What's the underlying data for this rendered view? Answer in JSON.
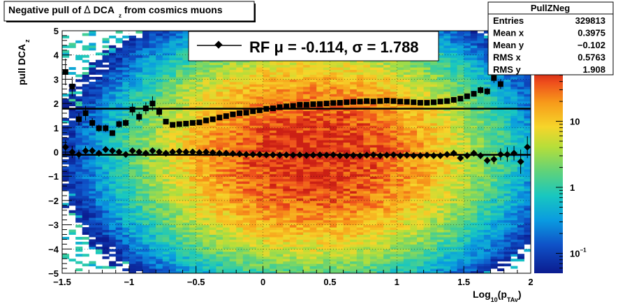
{
  "title_box": {
    "pre": "Negative pull of ",
    "delta": "Δ",
    "dca": " DCA",
    "sub": "z",
    "post": " from cosmics muons"
  },
  "stats": {
    "name": "PullZNeg",
    "rows": [
      {
        "label": "Entries",
        "value": "329813"
      },
      {
        "label": "Mean x",
        "value": "0.3975"
      },
      {
        "label": "Mean y",
        "value": "−0.102"
      },
      {
        "label": "RMS x",
        "value": "0.5763"
      },
      {
        "label": "RMS y",
        "value": "1.908"
      }
    ]
  },
  "legend": {
    "text": "RF μ = -0.114, σ =   1.788"
  },
  "axes": {
    "ylabel_main": "pull DCA",
    "ylabel_sub": "z",
    "xlabel_pre": "Log",
    "xlabel_sub1": "10",
    "xlabel_mid": "(p",
    "xlabel_sub2": "TAv",
    "xlabel_post": ")"
  },
  "colors": {
    "marker": "#000000",
    "fit_line": "#000000",
    "frame": "#000000"
  },
  "chart_data": {
    "type": "heatmap",
    "title": "Negative pull of Δ DCA_z from cosmics muons",
    "xlabel": "Log10(p_TAv)",
    "ylabel": "pull DCA_z",
    "xlim": [
      -1.5,
      2
    ],
    "ylim": [
      -5,
      5
    ],
    "x_ticks": [
      "−1.5",
      "−1",
      "−0.5",
      "0",
      "0.5",
      "1",
      "1.5",
      "2"
    ],
    "y_ticks": [
      "−5",
      "−4",
      "−3",
      "−2",
      "−1",
      "0",
      "1",
      "2",
      "3",
      "4",
      "5"
    ],
    "z_scale": "log",
    "z_ticks": [
      {
        "value": 0.1,
        "label": "10",
        "sup": "−1"
      },
      {
        "value": 1,
        "label": "1",
        "sup": ""
      },
      {
        "value": 10,
        "label": "10",
        "sup": ""
      }
    ],
    "zlim": [
      0.05,
      60
    ],
    "fit_lines": [
      {
        "name": "sigma",
        "y": 1.788
      },
      {
        "name": "mu",
        "y": -0.114
      }
    ],
    "series": [
      {
        "name": "sigma",
        "marker": "square",
        "x": [
          -1.475,
          -1.425,
          -1.375,
          -1.325,
          -1.275,
          -1.225,
          -1.175,
          -1.125,
          -1.075,
          -1.025,
          -0.975,
          -0.925,
          -0.875,
          -0.825,
          -0.775,
          -0.725,
          -0.675,
          -0.625,
          -0.575,
          -0.525,
          -0.475,
          -0.425,
          -0.375,
          -0.325,
          -0.275,
          -0.225,
          -0.175,
          -0.125,
          -0.075,
          -0.025,
          0.025,
          0.075,
          0.125,
          0.175,
          0.225,
          0.275,
          0.325,
          0.375,
          0.425,
          0.475,
          0.525,
          0.575,
          0.625,
          0.675,
          0.725,
          0.775,
          0.825,
          0.875,
          0.925,
          0.975,
          1.025,
          1.075,
          1.125,
          1.175,
          1.225,
          1.275,
          1.325,
          1.375,
          1.425,
          1.475,
          1.525,
          1.575,
          1.625,
          1.675,
          1.725,
          1.775,
          1.825,
          1.875,
          1.925,
          1.975
        ],
        "y": [
          3.3,
          2.7,
          1.35,
          1.6,
          1.2,
          0.98,
          0.98,
          0.78,
          1.15,
          1.2,
          1.75,
          1.45,
          1.8,
          2.0,
          1.65,
          1.25,
          1.12,
          1.15,
          1.17,
          1.2,
          1.22,
          1.3,
          1.35,
          1.42,
          1.48,
          1.55,
          1.6,
          1.62,
          1.68,
          1.72,
          1.78,
          1.8,
          1.85,
          1.88,
          1.9,
          1.95,
          1.95,
          1.97,
          1.98,
          2.0,
          2.02,
          2.03,
          2.05,
          2.07,
          2.08,
          2.1,
          2.08,
          2.1,
          2.12,
          2.1,
          2.08,
          2.07,
          2.05,
          2.03,
          2.03,
          2.05,
          2.08,
          2.1,
          2.15,
          2.2,
          2.3,
          2.4,
          2.55,
          2.5,
          3.05,
          2.8,
          3.75,
          3.6,
          4.55,
          4.85
        ],
        "y_err": [
          0.55,
          0.4,
          0.25,
          0.3,
          0.2,
          0.15,
          0.15,
          0.12,
          0.15,
          0.15,
          0.25,
          0.2,
          0.25,
          0.3,
          0.2,
          0.1,
          0.08,
          0.06,
          0.05,
          0.05,
          0.04,
          0.04,
          0.03,
          0.03,
          0.03,
          0.03,
          0.03,
          0.03,
          0.03,
          0.03,
          0.03,
          0.03,
          0.03,
          0.03,
          0.03,
          0.03,
          0.03,
          0.03,
          0.03,
          0.03,
          0.03,
          0.03,
          0.03,
          0.03,
          0.03,
          0.03,
          0.03,
          0.03,
          0.03,
          0.03,
          0.04,
          0.04,
          0.04,
          0.05,
          0.05,
          0.05,
          0.06,
          0.06,
          0.07,
          0.08,
          0.1,
          0.12,
          0.15,
          0.15,
          0.2,
          0.2,
          0.3,
          0.35,
          0.5,
          0.5
        ]
      },
      {
        "name": "mu",
        "marker": "diamond",
        "x": [
          -1.475,
          -1.425,
          -1.375,
          -1.325,
          -1.275,
          -1.225,
          -1.175,
          -1.125,
          -1.075,
          -1.025,
          -0.975,
          -0.925,
          -0.875,
          -0.825,
          -0.775,
          -0.725,
          -0.675,
          -0.625,
          -0.575,
          -0.525,
          -0.475,
          -0.425,
          -0.375,
          -0.325,
          -0.275,
          -0.225,
          -0.175,
          -0.125,
          -0.075,
          -0.025,
          0.025,
          0.075,
          0.125,
          0.175,
          0.225,
          0.275,
          0.325,
          0.375,
          0.425,
          0.475,
          0.525,
          0.575,
          0.625,
          0.675,
          0.725,
          0.775,
          0.825,
          0.875,
          0.925,
          0.975,
          1.025,
          1.075,
          1.125,
          1.175,
          1.225,
          1.275,
          1.325,
          1.375,
          1.425,
          1.475,
          1.525,
          1.575,
          1.625,
          1.675,
          1.725,
          1.775,
          1.825,
          1.875,
          1.925,
          1.975
        ],
        "y": [
          0.2,
          0.0,
          -0.1,
          0.05,
          0.05,
          -0.05,
          0.1,
          0.05,
          0.0,
          -0.1,
          0.05,
          0.0,
          -0.05,
          0.05,
          0.0,
          -0.05,
          0.0,
          0.02,
          0.0,
          0.0,
          -0.02,
          0.0,
          -0.03,
          -0.05,
          -0.05,
          -0.07,
          -0.08,
          -0.1,
          -0.1,
          -0.1,
          -0.12,
          -0.12,
          -0.13,
          -0.12,
          -0.13,
          -0.12,
          -0.14,
          -0.13,
          -0.12,
          -0.13,
          -0.12,
          -0.15,
          -0.15,
          -0.14,
          -0.15,
          -0.13,
          -0.12,
          -0.15,
          -0.13,
          -0.12,
          -0.15,
          -0.13,
          -0.15,
          -0.15,
          -0.13,
          -0.15,
          -0.15,
          -0.1,
          -0.05,
          -0.25,
          -0.15,
          -0.05,
          -0.15,
          -0.35,
          -0.3,
          -0.1,
          -0.1,
          -0.05,
          -0.4,
          0.2
        ],
        "y_err": [
          0.3,
          0.25,
          0.2,
          0.2,
          0.15,
          0.12,
          0.12,
          0.1,
          0.1,
          0.1,
          0.1,
          0.08,
          0.08,
          0.08,
          0.06,
          0.05,
          0.04,
          0.04,
          0.03,
          0.03,
          0.03,
          0.03,
          0.02,
          0.02,
          0.02,
          0.02,
          0.02,
          0.02,
          0.02,
          0.02,
          0.02,
          0.02,
          0.02,
          0.02,
          0.02,
          0.02,
          0.02,
          0.02,
          0.02,
          0.02,
          0.02,
          0.02,
          0.02,
          0.02,
          0.02,
          0.02,
          0.02,
          0.02,
          0.02,
          0.02,
          0.03,
          0.03,
          0.03,
          0.03,
          0.03,
          0.04,
          0.04,
          0.05,
          0.05,
          0.06,
          0.08,
          0.1,
          0.12,
          0.15,
          0.2,
          0.25,
          0.3,
          0.3,
          0.5,
          0.45
        ]
      }
    ]
  }
}
